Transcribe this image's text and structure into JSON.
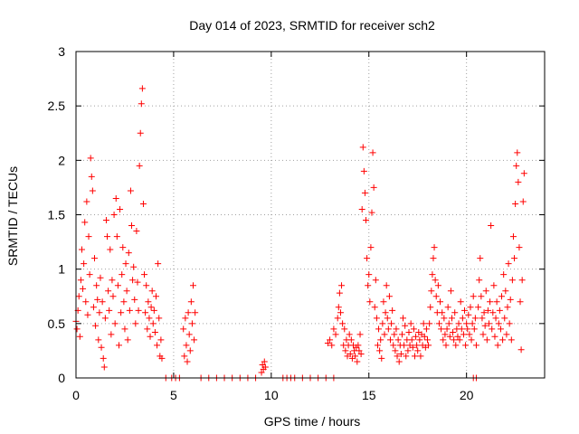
{
  "chart_data": {
    "type": "scatter",
    "title": "Day 014 of 2023, SRMTID for receiver sch2",
    "xlabel": "GPS time / hours",
    "ylabel": "SRMTID / TECUs",
    "xlim": [
      0,
      24
    ],
    "ylim": [
      0,
      3
    ],
    "grid": true,
    "marker": "+",
    "series": [
      {
        "name": "SRMTID",
        "color": "#ff0000",
        "points": [
          [
            0.0,
            0.52
          ],
          [
            0.05,
            0.45
          ],
          [
            0.1,
            0.62
          ],
          [
            0.15,
            0.75
          ],
          [
            0.2,
            0.38
          ],
          [
            0.25,
            0.9
          ],
          [
            0.3,
            1.18
          ],
          [
            0.35,
            0.82
          ],
          [
            0.4,
            1.05
          ],
          [
            0.45,
            1.43
          ],
          [
            0.5,
            0.7
          ],
          [
            0.55,
            1.62
          ],
          [
            0.6,
            0.58
          ],
          [
            0.65,
            1.3
          ],
          [
            0.7,
            0.95
          ],
          [
            0.75,
            2.02
          ],
          [
            0.8,
            1.85
          ],
          [
            0.85,
            1.72
          ],
          [
            0.9,
            0.65
          ],
          [
            0.95,
            1.1
          ],
          [
            1.0,
            0.48
          ],
          [
            1.05,
            0.85
          ],
          [
            1.1,
            0.72
          ],
          [
            1.15,
            0.35
          ],
          [
            1.2,
            0.6
          ],
          [
            1.25,
            0.92
          ],
          [
            1.3,
            0.28
          ],
          [
            1.35,
            0.7
          ],
          [
            1.4,
            0.18
          ],
          [
            1.45,
            0.1
          ],
          [
            1.5,
            0.55
          ],
          [
            1.55,
            1.45
          ],
          [
            1.6,
            1.3
          ],
          [
            1.65,
            0.8
          ],
          [
            1.7,
            0.62
          ],
          [
            1.75,
            1.18
          ],
          [
            1.8,
            0.4
          ],
          [
            1.85,
            0.9
          ],
          [
            1.9,
            0.75
          ],
          [
            1.95,
            1.5
          ],
          [
            2.0,
            0.5
          ],
          [
            2.05,
            1.65
          ],
          [
            2.1,
            1.3
          ],
          [
            2.15,
            0.85
          ],
          [
            2.2,
            0.3
          ],
          [
            2.25,
            1.55
          ],
          [
            2.3,
            0.6
          ],
          [
            2.35,
            0.95
          ],
          [
            2.4,
            1.2
          ],
          [
            2.45,
            0.7
          ],
          [
            2.5,
            0.45
          ],
          [
            2.55,
            1.05
          ],
          [
            2.6,
            0.8
          ],
          [
            2.65,
            0.35
          ],
          [
            2.7,
            1.15
          ],
          [
            2.75,
            0.62
          ],
          [
            2.8,
            1.72
          ],
          [
            2.85,
            1.4
          ],
          [
            2.9,
            0.9
          ],
          [
            2.95,
            1.02
          ],
          [
            3.0,
            0.72
          ],
          [
            3.05,
            0.5
          ],
          [
            3.1,
            1.35
          ],
          [
            3.15,
            0.88
          ],
          [
            3.2,
            0.62
          ],
          [
            3.25,
            1.95
          ],
          [
            3.3,
            2.25
          ],
          [
            3.35,
            2.52
          ],
          [
            3.4,
            2.66
          ],
          [
            3.45,
            1.6
          ],
          [
            3.5,
            0.95
          ],
          [
            3.55,
            0.6
          ],
          [
            3.6,
            0.85
          ],
          [
            3.65,
            0.45
          ],
          [
            3.7,
            0.7
          ],
          [
            3.75,
            0.55
          ],
          [
            3.8,
            0.38
          ],
          [
            3.85,
            0.65
          ],
          [
            3.9,
            0.8
          ],
          [
            3.95,
            0.5
          ],
          [
            4.0,
            0.62
          ],
          [
            4.05,
            0.42
          ],
          [
            4.1,
            0.75
          ],
          [
            4.15,
            0.3
          ],
          [
            4.2,
            1.05
          ],
          [
            4.25,
            0.55
          ],
          [
            4.3,
            0.2
          ],
          [
            4.35,
            0.35
          ],
          [
            4.4,
            0.18
          ],
          [
            4.6,
            0.0
          ],
          [
            4.9,
            0.0
          ],
          [
            5.1,
            0.0
          ],
          [
            5.3,
            0.0
          ],
          [
            5.5,
            0.45
          ],
          [
            5.55,
            0.2
          ],
          [
            5.6,
            0.55
          ],
          [
            5.65,
            0.3
          ],
          [
            5.7,
            0.15
          ],
          [
            5.75,
            0.6
          ],
          [
            5.8,
            0.4
          ],
          [
            5.85,
            0.25
          ],
          [
            5.9,
            0.7
          ],
          [
            5.95,
            0.5
          ],
          [
            6.0,
            0.85
          ],
          [
            6.05,
            0.35
          ],
          [
            6.1,
            0.6
          ],
          [
            6.4,
            0.0
          ],
          [
            6.8,
            0.0
          ],
          [
            7.2,
            0.0
          ],
          [
            7.6,
            0.0
          ],
          [
            8.0,
            0.0
          ],
          [
            8.4,
            0.0
          ],
          [
            8.8,
            0.0
          ],
          [
            9.2,
            0.0
          ],
          [
            9.5,
            0.05
          ],
          [
            9.55,
            0.12
          ],
          [
            9.6,
            0.08
          ],
          [
            9.65,
            0.15
          ],
          [
            9.7,
            0.1
          ],
          [
            10.6,
            0.0
          ],
          [
            10.8,
            0.0
          ],
          [
            11.0,
            0.0
          ],
          [
            11.2,
            0.0
          ],
          [
            11.6,
            0.0
          ],
          [
            12.0,
            0.0
          ],
          [
            12.4,
            0.0
          ],
          [
            12.8,
            0.0
          ],
          [
            13.2,
            0.0
          ],
          [
            12.9,
            0.32
          ],
          [
            13.0,
            0.35
          ],
          [
            13.1,
            0.3
          ],
          [
            13.2,
            0.45
          ],
          [
            13.3,
            0.4
          ],
          [
            13.4,
            0.55
          ],
          [
            13.45,
            0.65
          ],
          [
            13.5,
            0.78
          ],
          [
            13.55,
            0.6
          ],
          [
            13.6,
            0.85
          ],
          [
            13.65,
            0.5
          ],
          [
            13.7,
            0.3
          ],
          [
            13.75,
            0.45
          ],
          [
            13.8,
            0.25
          ],
          [
            13.85,
            0.35
          ],
          [
            13.9,
            0.2
          ],
          [
            13.95,
            0.3
          ],
          [
            14.0,
            0.4
          ],
          [
            14.05,
            0.22
          ],
          [
            14.1,
            0.35
          ],
          [
            14.15,
            0.18
          ],
          [
            14.2,
            0.3
          ],
          [
            14.25,
            0.25
          ],
          [
            14.3,
            0.2
          ],
          [
            14.35,
            0.28
          ],
          [
            14.4,
            0.15
          ],
          [
            14.45,
            0.3
          ],
          [
            14.5,
            0.25
          ],
          [
            14.55,
            0.4
          ],
          [
            14.6,
            0.22
          ],
          [
            14.65,
            1.55
          ],
          [
            14.7,
            2.12
          ],
          [
            14.75,
            1.9
          ],
          [
            14.8,
            1.7
          ],
          [
            14.85,
            1.45
          ],
          [
            14.9,
            1.1
          ],
          [
            14.95,
            0.85
          ],
          [
            15.0,
            0.95
          ],
          [
            15.05,
            0.7
          ],
          [
            15.1,
            1.2
          ],
          [
            15.15,
            1.52
          ],
          [
            15.2,
            2.07
          ],
          [
            15.25,
            1.75
          ],
          [
            15.3,
            0.65
          ],
          [
            15.35,
            0.9
          ],
          [
            15.4,
            0.55
          ],
          [
            15.45,
            0.3
          ],
          [
            15.5,
            0.45
          ],
          [
            15.55,
            0.25
          ],
          [
            15.6,
            0.35
          ],
          [
            15.65,
            0.18
          ],
          [
            15.7,
            0.5
          ],
          [
            15.75,
            0.7
          ],
          [
            15.8,
            0.4
          ],
          [
            15.85,
            0.6
          ],
          [
            15.9,
            0.85
          ],
          [
            15.95,
            0.55
          ],
          [
            16.0,
            0.45
          ],
          [
            16.05,
            0.75
          ],
          [
            16.1,
            0.35
          ],
          [
            16.15,
            0.5
          ],
          [
            16.2,
            0.62
          ],
          [
            16.25,
            0.3
          ],
          [
            16.3,
            0.4
          ],
          [
            16.35,
            0.25
          ],
          [
            16.4,
            0.45
          ],
          [
            16.45,
            0.2
          ],
          [
            16.5,
            0.35
          ],
          [
            16.55,
            0.15
          ],
          [
            16.6,
            0.3
          ],
          [
            16.65,
            0.22
          ],
          [
            16.7,
            0.4
          ],
          [
            16.75,
            0.55
          ],
          [
            16.8,
            0.3
          ],
          [
            16.85,
            0.48
          ],
          [
            16.9,
            0.2
          ],
          [
            16.95,
            0.35
          ],
          [
            17.0,
            0.25
          ],
          [
            17.05,
            0.42
          ],
          [
            17.1,
            0.3
          ],
          [
            17.15,
            0.5
          ],
          [
            17.2,
            0.35
          ],
          [
            17.25,
            0.28
          ],
          [
            17.3,
            0.45
          ],
          [
            17.35,
            0.2
          ],
          [
            17.4,
            0.38
          ],
          [
            17.45,
            0.3
          ],
          [
            17.5,
            0.25
          ],
          [
            17.55,
            0.42
          ],
          [
            17.6,
            0.35
          ],
          [
            17.65,
            0.2
          ],
          [
            17.7,
            0.4
          ],
          [
            17.75,
            0.3
          ],
          [
            17.8,
            0.5
          ],
          [
            17.85,
            0.38
          ],
          [
            17.9,
            0.28
          ],
          [
            17.95,
            0.45
          ],
          [
            18.0,
            0.35
          ],
          [
            18.05,
            0.3
          ],
          [
            18.1,
            0.5
          ],
          [
            18.15,
            0.65
          ],
          [
            18.2,
            0.8
          ],
          [
            18.25,
            0.95
          ],
          [
            18.3,
            1.1
          ],
          [
            18.35,
            1.2
          ],
          [
            18.4,
            0.9
          ],
          [
            18.45,
            0.75
          ],
          [
            18.5,
            0.6
          ],
          [
            18.55,
            0.85
          ],
          [
            18.6,
            0.5
          ],
          [
            18.65,
            0.7
          ],
          [
            18.7,
            0.45
          ],
          [
            18.75,
            0.6
          ],
          [
            18.8,
            0.35
          ],
          [
            18.85,
            0.55
          ],
          [
            18.9,
            0.4
          ],
          [
            18.95,
            0.3
          ],
          [
            19.0,
            0.45
          ],
          [
            19.05,
            0.65
          ],
          [
            19.1,
            0.5
          ],
          [
            19.15,
            0.38
          ],
          [
            19.2,
            0.8
          ],
          [
            19.25,
            0.55
          ],
          [
            19.3,
            0.42
          ],
          [
            19.35,
            0.35
          ],
          [
            19.4,
            0.6
          ],
          [
            19.45,
            0.3
          ],
          [
            19.5,
            0.45
          ],
          [
            19.55,
            0.38
          ],
          [
            19.6,
            0.5
          ],
          [
            19.65,
            0.35
          ],
          [
            19.7,
            0.7
          ],
          [
            19.75,
            0.45
          ],
          [
            19.8,
            0.55
          ],
          [
            19.85,
            0.4
          ],
          [
            19.9,
            0.62
          ],
          [
            19.95,
            0.3
          ],
          [
            20.0,
            0.5
          ],
          [
            20.05,
            0.45
          ],
          [
            20.1,
            0.58
          ],
          [
            20.15,
            0.4
          ],
          [
            20.2,
            0.65
          ],
          [
            20.25,
            0.35
          ],
          [
            20.3,
            0.5
          ],
          [
            20.35,
            0.75
          ],
          [
            20.4,
            0.45
          ],
          [
            20.45,
            0.55
          ],
          [
            20.5,
            0.3
          ],
          [
            20.35,
            0.0
          ],
          [
            20.5,
            0.0
          ],
          [
            20.6,
            0.65
          ],
          [
            20.65,
            0.9
          ],
          [
            20.7,
            1.1
          ],
          [
            20.75,
            0.75
          ],
          [
            20.8,
            0.55
          ],
          [
            20.85,
            0.4
          ],
          [
            20.9,
            0.6
          ],
          [
            20.95,
            0.48
          ],
          [
            21.0,
            0.8
          ],
          [
            21.05,
            0.35
          ],
          [
            21.1,
            0.62
          ],
          [
            21.15,
            0.5
          ],
          [
            21.2,
            0.7
          ],
          [
            21.25,
            1.4
          ],
          [
            21.3,
            0.45
          ],
          [
            21.35,
            0.6
          ],
          [
            21.4,
            0.85
          ],
          [
            21.45,
            0.38
          ],
          [
            21.5,
            0.55
          ],
          [
            21.55,
            0.7
          ],
          [
            21.6,
            0.3
          ],
          [
            21.65,
            0.5
          ],
          [
            21.7,
            0.62
          ],
          [
            21.75,
            0.45
          ],
          [
            21.8,
            0.75
          ],
          [
            21.85,
            0.35
          ],
          [
            21.9,
            0.95
          ],
          [
            21.95,
            0.55
          ],
          [
            22.0,
            0.8
          ],
          [
            22.05,
            0.4
          ],
          [
            22.1,
            0.65
          ],
          [
            22.15,
            1.05
          ],
          [
            22.2,
            0.5
          ],
          [
            22.25,
            0.72
          ],
          [
            22.3,
            0.35
          ],
          [
            22.35,
            0.9
          ],
          [
            22.4,
            1.3
          ],
          [
            22.45,
            1.1
          ],
          [
            22.5,
            1.6
          ],
          [
            22.55,
            1.95
          ],
          [
            22.6,
            2.07
          ],
          [
            22.65,
            1.8
          ],
          [
            22.7,
            1.2
          ],
          [
            22.75,
            0.7
          ],
          [
            22.8,
            0.26
          ],
          [
            22.85,
            0.9
          ],
          [
            22.9,
            1.62
          ],
          [
            22.95,
            1.88
          ]
        ]
      }
    ]
  }
}
